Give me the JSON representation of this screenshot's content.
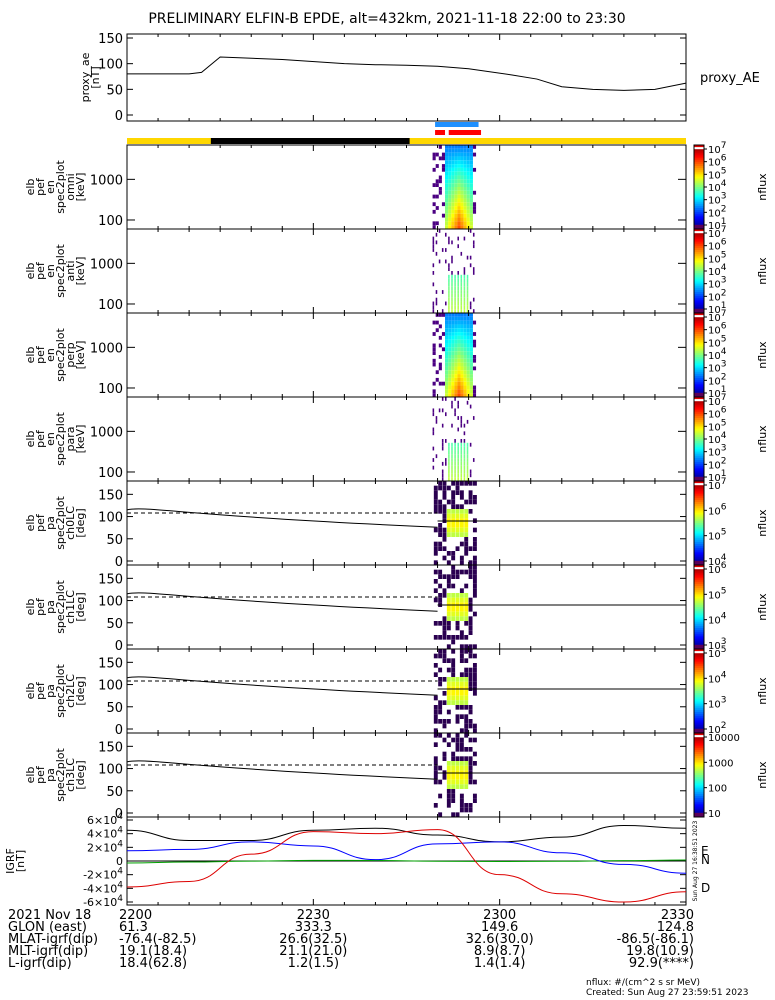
{
  "title": "PRELIMINARY ELFIN-B EPDE, alt=432km, 2021-11-18 22:00 to 23:30",
  "colors": {
    "state_yellow": "#ffd700",
    "state_black": "#000000",
    "bar_blue": "#1e90ff",
    "bar_red": "#ff0000",
    "grf_black": "#000000",
    "grf_blue": "#0000ff",
    "grf_green": "#00a000",
    "grf_red": "#dd0000"
  },
  "proxy_ae": {
    "ylabel_lines": [
      "proxy_ae",
      "[nT]"
    ],
    "right_label": "proxy_AE",
    "yticks": [
      "150",
      "100",
      "50",
      "0"
    ],
    "ylim": [
      0,
      150
    ]
  },
  "spec_panels": [
    {
      "ylabel_lines": [
        "elb",
        "pef",
        "en",
        "spec2plot",
        "omni",
        "[keV]"
      ],
      "yticks": [
        "1000",
        "100"
      ],
      "cbar_ticks": [
        "10^7",
        "10^6",
        "10^5",
        "10^4",
        "10^3",
        "10^2",
        "10^1"
      ],
      "cbar_label": "nflux"
    },
    {
      "ylabel_lines": [
        "elb",
        "pef",
        "en",
        "spec2plot",
        "anti",
        "[keV]"
      ],
      "yticks": [
        "1000",
        "100"
      ],
      "cbar_ticks": [
        "10^7",
        "10^6",
        "10^5",
        "10^4",
        "10^3",
        "10^2",
        "10^1"
      ],
      "cbar_label": "nflux"
    },
    {
      "ylabel_lines": [
        "elb",
        "pef",
        "en",
        "spec2plot",
        "perp",
        "[keV]"
      ],
      "yticks": [
        "1000",
        "100"
      ],
      "cbar_ticks": [
        "10^7",
        "10^6",
        "10^5",
        "10^4",
        "10^3",
        "10^2",
        "10^1"
      ],
      "cbar_label": "nflux"
    },
    {
      "ylabel_lines": [
        "elb",
        "pef",
        "en",
        "spec2plot",
        "para",
        "[keV]"
      ],
      "yticks": [
        "1000",
        "100"
      ],
      "cbar_ticks": [
        "10^7",
        "10^6",
        "10^5",
        "10^4",
        "10^3",
        "10^2",
        "10^1"
      ],
      "cbar_label": "nflux"
    }
  ],
  "pa_panels": [
    {
      "ylabel_lines": [
        "elb",
        "pef",
        "pa",
        "spec2plot",
        "ch0LC",
        "[deg]"
      ],
      "yticks": [
        "150",
        "100",
        "50",
        "0"
      ],
      "cbar_ticks": [
        "10^7",
        "10^6",
        "10^5",
        "10^4"
      ],
      "cbar_label": "nflux"
    },
    {
      "ylabel_lines": [
        "elb",
        "pef",
        "pa",
        "spec2plot",
        "ch1LC",
        "[deg]"
      ],
      "yticks": [
        "150",
        "100",
        "50",
        "0"
      ],
      "cbar_ticks": [
        "10^6",
        "10^5",
        "10^4",
        "10^3"
      ],
      "cbar_label": "nflux"
    },
    {
      "ylabel_lines": [
        "elb",
        "pef",
        "pa",
        "spec2plot",
        "ch2LC",
        "[deg]"
      ],
      "yticks": [
        "150",
        "100",
        "50",
        "0"
      ],
      "cbar_ticks": [
        "10^5",
        "10^4",
        "10^3",
        "10^2"
      ],
      "cbar_label": "nflux"
    },
    {
      "ylabel_lines": [
        "elb",
        "pef",
        "pa",
        "spec2plot",
        "ch3LC",
        "[deg]"
      ],
      "yticks": [
        "150",
        "100",
        "50",
        "0"
      ],
      "cbar_ticks": [
        "10000",
        "1000",
        "100",
        "10"
      ],
      "cbar_label": "nflux"
    }
  ],
  "igrf": {
    "ylabel_lines": [
      "IGRF",
      "[nT]"
    ],
    "yticks": [
      "6×10^4",
      "4×10^4",
      "2×10^4",
      "0",
      "-2×10^4",
      "-4×10^4",
      "-6×10^4"
    ],
    "legend": [
      "E",
      "N",
      "D"
    ],
    "side_note": "Sun Aug 27 16:38:51 2023"
  },
  "xaxis": {
    "ticks": [
      "2200",
      "2230",
      "2300",
      "2330"
    ]
  },
  "footer_rows": [
    {
      "label": "2021 Nov 18",
      "values": [
        "2200",
        "2230",
        "2300",
        "2330"
      ]
    },
    {
      "label": "GLON (east)",
      "values": [
        "61.3",
        "333.3",
        "149.6",
        "124.8"
      ]
    },
    {
      "label": "MLAT-igrf(dip)",
      "values": [
        "-76.4(-82.5)",
        "26.6(32.5)",
        "32.6(30.0)",
        "-86.5(-86.1)"
      ]
    },
    {
      "label": "MLT-igrf(dip)",
      "values": [
        "19.1(18.4)",
        "21.1(21.0)",
        "8.9(8.7)",
        "19.8(10.9)"
      ]
    },
    {
      "label": "L-igrf(dip)",
      "values": [
        "18.4(62.8)",
        "1.2(1.5)",
        "1.4(1.4)",
        "92.9(****)"
      ]
    }
  ],
  "footnote_units": "nflux: #/(cm^2 s sr MeV)",
  "footnote_created": "Created: Sun Aug 27 23:59:51 2023",
  "chart_data": {
    "type": "heatmap",
    "title": "PRELIMINARY ELFIN-B EPDE, alt=432km, 2021-11-18 22:00 to 23:30",
    "x_ticks": [
      "2200",
      "2230",
      "2300",
      "2330"
    ],
    "xlim": [
      "22:00",
      "23:30"
    ],
    "proxy_ae_nT": {
      "t_min": [
        0,
        10,
        12,
        15,
        25,
        35,
        40,
        45,
        50,
        55,
        62,
        66,
        70,
        75,
        80,
        85,
        90
      ],
      "values": [
        80,
        80,
        83,
        113,
        108,
        100,
        98,
        97,
        95,
        90,
        78,
        70,
        55,
        50,
        48,
        50,
        62
      ]
    },
    "event_window_min": [
      50,
      56
    ],
    "spectrogram_energy_keV": {
      "ylim": [
        60,
        7000
      ],
      "scale": "log"
    },
    "pitch_angle_deg": {
      "ylim": [
        0,
        180
      ]
    },
    "igrf_nT": {
      "ylim": [
        -60000,
        60000
      ],
      "t_min": [
        0,
        10,
        20,
        30,
        40,
        50,
        60,
        70,
        80,
        90
      ],
      "series": [
        {
          "name": "E",
          "values": [
            -3000,
            -1500,
            -200,
            1000,
            800,
            -300,
            -800,
            -400,
            500,
            1500
          ]
        },
        {
          "name": "N",
          "values": [
            15000,
            17000,
            28000,
            22000,
            2000,
            25000,
            28000,
            12000,
            -5000,
            -18000
          ]
        },
        {
          "name": "D",
          "values": [
            -38000,
            -30000,
            10000,
            43000,
            40000,
            46000,
            -20000,
            -48000,
            -60000,
            -45000
          ]
        }
      ],
      "total_series_values": [
        45000,
        30000,
        30000,
        45000,
        48000,
        38000,
        28000,
        35000,
        52000,
        48000
      ]
    }
  }
}
